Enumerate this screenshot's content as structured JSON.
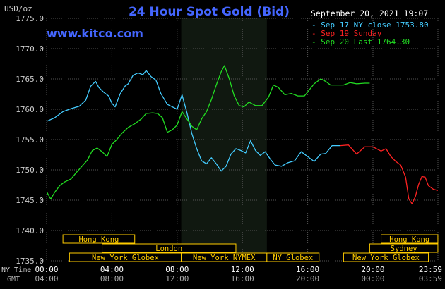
{
  "chart_data": {
    "type": "line",
    "title": "24 Hour Spot Gold (Bid)",
    "ylabel": "USD/oz",
    "source": "www.kitco.com",
    "date_label": "September 20, 2021 19:07",
    "ylim": [
      1735.0,
      1775.0
    ],
    "yticks": [
      "1735.0",
      "1740.0",
      "1745.0",
      "1750.0",
      "1755.0",
      "1760.0",
      "1765.0",
      "1770.0",
      "1775.0"
    ],
    "x_axis_rows": [
      {
        "label": "NY Time",
        "ticks": [
          "00:00",
          "04:00",
          "08:00",
          "12:00",
          "16:00",
          "20:00",
          "23:59"
        ]
      },
      {
        "label": "GMT",
        "ticks": [
          "04:00",
          "08:00",
          "12:00",
          "16:00",
          "20:00",
          "00:00",
          "03:59"
        ]
      }
    ],
    "x_hours": [
      0,
      4,
      8,
      12,
      16,
      20,
      23.983
    ],
    "legend_position": "top-right",
    "highlight_range_hours": [
      8.25,
      13.5
    ],
    "grid": true,
    "series": [
      {
        "name": "Sep 17 NY close 1753.80",
        "color": "#44ccff",
        "points": [
          [
            0,
            1758.0
          ],
          [
            0.5,
            1758.6
          ],
          [
            1.0,
            1759.6
          ],
          [
            1.5,
            1760.1
          ],
          [
            2.0,
            1760.5
          ],
          [
            2.4,
            1761.5
          ],
          [
            2.7,
            1763.8
          ],
          [
            3.0,
            1764.6
          ],
          [
            3.2,
            1763.6
          ],
          [
            3.5,
            1762.8
          ],
          [
            3.8,
            1762.2
          ],
          [
            4.0,
            1761.0
          ],
          [
            4.2,
            1760.4
          ],
          [
            4.5,
            1762.5
          ],
          [
            4.8,
            1763.8
          ],
          [
            5.0,
            1764.2
          ],
          [
            5.3,
            1765.6
          ],
          [
            5.6,
            1766.0
          ],
          [
            5.9,
            1765.7
          ],
          [
            6.1,
            1766.4
          ],
          [
            6.4,
            1765.4
          ],
          [
            6.7,
            1764.8
          ],
          [
            7.0,
            1762.6
          ],
          [
            7.4,
            1760.8
          ],
          [
            7.7,
            1760.4
          ],
          [
            8.0,
            1760.0
          ],
          [
            8.3,
            1762.4
          ],
          [
            8.6,
            1759.4
          ],
          [
            8.9,
            1756.0
          ],
          [
            9.2,
            1753.5
          ],
          [
            9.5,
            1751.5
          ],
          [
            9.8,
            1751.0
          ],
          [
            10.1,
            1752.0
          ],
          [
            10.4,
            1751.0
          ],
          [
            10.7,
            1749.8
          ],
          [
            11.0,
            1750.6
          ],
          [
            11.3,
            1752.6
          ],
          [
            11.6,
            1753.5
          ],
          [
            11.9,
            1753.2
          ],
          [
            12.2,
            1752.8
          ],
          [
            12.5,
            1754.8
          ],
          [
            12.8,
            1753.2
          ],
          [
            13.1,
            1752.4
          ],
          [
            13.4,
            1753.0
          ],
          [
            13.7,
            1751.8
          ],
          [
            14.0,
            1750.8
          ],
          [
            14.4,
            1750.6
          ],
          [
            14.8,
            1751.2
          ],
          [
            15.2,
            1751.5
          ],
          [
            15.6,
            1753.0
          ],
          [
            16.0,
            1752.2
          ],
          [
            16.4,
            1751.4
          ],
          [
            16.8,
            1752.6
          ],
          [
            17.1,
            1752.7
          ],
          [
            17.5,
            1754.0
          ],
          [
            18.0,
            1754.0
          ]
        ]
      },
      {
        "name": "Sep 19 Sunday",
        "color": "#ff2222",
        "points": [
          [
            18.0,
            1754.0
          ],
          [
            18.5,
            1754.1
          ],
          [
            19.0,
            1752.6
          ],
          [
            19.5,
            1753.8
          ],
          [
            20.0,
            1753.8
          ],
          [
            20.5,
            1753.1
          ],
          [
            20.8,
            1753.5
          ],
          [
            21.1,
            1752.2
          ],
          [
            21.4,
            1751.4
          ],
          [
            21.7,
            1750.8
          ],
          [
            22.0,
            1748.8
          ],
          [
            22.2,
            1745.2
          ],
          [
            22.4,
            1744.4
          ],
          [
            22.6,
            1745.6
          ],
          [
            22.8,
            1747.6
          ],
          [
            23.0,
            1748.9
          ],
          [
            23.2,
            1748.8
          ],
          [
            23.4,
            1747.4
          ],
          [
            23.7,
            1746.8
          ],
          [
            23.98,
            1746.6
          ]
        ]
      },
      {
        "name": "Sep 20 Last 1764.30",
        "color": "#22dd22",
        "points": [
          [
            0,
            1746.4
          ],
          [
            0.25,
            1745.2
          ],
          [
            0.5,
            1746.3
          ],
          [
            0.8,
            1747.4
          ],
          [
            1.1,
            1748.0
          ],
          [
            1.5,
            1748.5
          ],
          [
            1.8,
            1749.5
          ],
          [
            2.1,
            1750.4
          ],
          [
            2.5,
            1751.6
          ],
          [
            2.8,
            1753.2
          ],
          [
            3.1,
            1753.6
          ],
          [
            3.4,
            1753.0
          ],
          [
            3.7,
            1752.2
          ],
          [
            4.0,
            1754.2
          ],
          [
            4.3,
            1755.0
          ],
          [
            4.6,
            1756.0
          ],
          [
            5.0,
            1757.0
          ],
          [
            5.4,
            1757.6
          ],
          [
            5.8,
            1758.4
          ],
          [
            6.1,
            1759.3
          ],
          [
            6.5,
            1759.4
          ],
          [
            6.8,
            1759.3
          ],
          [
            7.1,
            1758.6
          ],
          [
            7.4,
            1756.2
          ],
          [
            7.7,
            1756.6
          ],
          [
            8.0,
            1757.4
          ],
          [
            8.3,
            1759.6
          ],
          [
            8.6,
            1758.4
          ],
          [
            8.9,
            1757.2
          ],
          [
            9.2,
            1756.6
          ],
          [
            9.5,
            1758.4
          ],
          [
            9.8,
            1759.6
          ],
          [
            10.1,
            1761.6
          ],
          [
            10.4,
            1764.0
          ],
          [
            10.7,
            1766.2
          ],
          [
            10.9,
            1767.2
          ],
          [
            11.2,
            1765.0
          ],
          [
            11.5,
            1762.2
          ],
          [
            11.8,
            1760.6
          ],
          [
            12.1,
            1760.4
          ],
          [
            12.4,
            1761.2
          ],
          [
            12.8,
            1760.6
          ],
          [
            13.2,
            1760.6
          ],
          [
            13.6,
            1762.0
          ],
          [
            13.9,
            1764.0
          ],
          [
            14.2,
            1763.6
          ],
          [
            14.6,
            1762.4
          ],
          [
            15.0,
            1762.6
          ],
          [
            15.4,
            1762.2
          ],
          [
            15.8,
            1762.2
          ],
          [
            16.1,
            1763.2
          ],
          [
            16.4,
            1764.2
          ],
          [
            16.8,
            1765.0
          ],
          [
            17.1,
            1764.6
          ],
          [
            17.4,
            1764.0
          ],
          [
            17.8,
            1764.0
          ],
          [
            18.2,
            1764.0
          ],
          [
            18.6,
            1764.4
          ],
          [
            19.0,
            1764.2
          ],
          [
            19.5,
            1764.3
          ],
          [
            19.8,
            1764.3
          ]
        ]
      }
    ]
  },
  "session_bars": [
    {
      "label": "Hong Kong",
      "row": 0,
      "start": 1.0,
      "end": 5.4,
      "color": "#ffcc00"
    },
    {
      "label": "London",
      "row": 1,
      "start": 3.4,
      "end": 11.6,
      "color": "#ffcc00"
    },
    {
      "label": "New York Globex",
      "row": 2,
      "start": 1.4,
      "end": 8.25,
      "color": "#ffcc00"
    },
    {
      "label": "New York NYMEX",
      "row": 2,
      "start": 8.25,
      "end": 13.5,
      "color": "#ffcc00"
    },
    {
      "label": "NY Globex",
      "row": 2,
      "start": 13.5,
      "end": 16.7,
      "color": "#ffcc00"
    },
    {
      "label": "Hong Kong",
      "row": 0,
      "start": 20.5,
      "end": 23.98,
      "color": "#ffcc00"
    },
    {
      "label": "Sydney",
      "row": 1,
      "start": 19.8,
      "end": 23.98,
      "color": "#ffcc00"
    },
    {
      "label": "New York Globex",
      "row": 2,
      "start": 18.2,
      "end": 23.4,
      "color": "#ffcc00"
    }
  ],
  "colors": {
    "background": "#000000",
    "plot_background": "#000000",
    "highlight": "#101810",
    "grid": "#555555",
    "title": "#4466ff",
    "source": "#4466ff",
    "axis_text": "#cccccc",
    "date_text": "#ffffff"
  }
}
